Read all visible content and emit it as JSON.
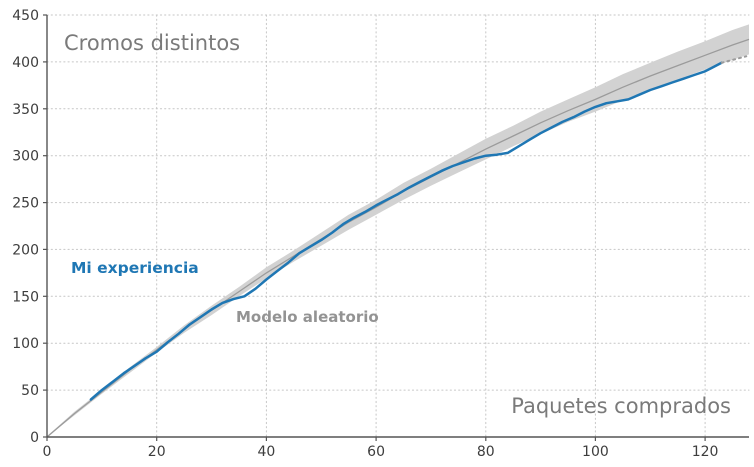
{
  "chart_data": {
    "type": "line",
    "title": "Cromos distintos",
    "xlabel": "Paquetes comprados",
    "ylabel": "Cromos distintos",
    "xlim": [
      0,
      128
    ],
    "ylim": [
      0,
      450
    ],
    "xticks": [
      0,
      20,
      40,
      60,
      80,
      100,
      120
    ],
    "yticks": [
      0,
      50,
      100,
      150,
      200,
      250,
      300,
      350,
      400,
      450
    ],
    "grid": true,
    "legend_position": "inline-annotations",
    "band_color": "#d2d2d2",
    "text_color": "#7a7a7a",
    "series": [
      {
        "name": "Mi experiencia",
        "color": "#1f77b4",
        "x": [
          8,
          10,
          12,
          14,
          16,
          18,
          20,
          22,
          24,
          26,
          28,
          30,
          32,
          34,
          36,
          38,
          40,
          42,
          44,
          46,
          48,
          50,
          52,
          54,
          56,
          58,
          60,
          62,
          64,
          66,
          68,
          70,
          72,
          74,
          76,
          78,
          80,
          82,
          84,
          86,
          88,
          90,
          92,
          94,
          96,
          98,
          100,
          102,
          104,
          106,
          108,
          110,
          112,
          114,
          116,
          118,
          120,
          121,
          122,
          123
        ],
        "y": [
          40,
          50,
          59,
          68,
          76,
          84,
          91,
          101,
          110,
          120,
          128,
          136,
          143,
          147,
          150,
          158,
          168,
          177,
          186,
          196,
          203,
          210,
          218,
          227,
          234,
          240,
          247,
          253,
          259,
          266,
          272,
          278,
          284,
          289,
          293,
          297,
          300,
          301,
          303,
          310,
          317,
          324,
          330,
          336,
          341,
          347,
          352,
          356,
          358,
          360,
          365,
          370,
          374,
          378,
          382,
          386,
          390,
          393,
          396,
          399
        ]
      },
      {
        "name": "Modelo aleatorio",
        "color": "#9b9b9b",
        "x": [
          0,
          5,
          10,
          15,
          20,
          25,
          30,
          35,
          40,
          45,
          50,
          55,
          60,
          65,
          70,
          75,
          80,
          85,
          90,
          95,
          100,
          105,
          110,
          115,
          120,
          125,
          128
        ],
        "y": [
          0,
          25,
          48,
          71,
          93,
          115,
          135,
          155,
          175,
          193,
          211,
          229,
          245,
          262,
          277,
          292,
          307,
          321,
          335,
          348,
          360,
          373,
          385,
          396,
          407,
          418,
          424
        ],
        "band_lower": [
          0,
          23,
          46,
          68,
          90,
          111,
          130,
          150,
          169,
          187,
          204,
          221,
          237,
          253,
          268,
          282,
          296,
          310,
          323,
          336,
          347,
          359,
          371,
          381,
          392,
          402,
          408
        ],
        "band_upper": [
          1,
          27,
          50,
          74,
          96,
          119,
          140,
          160,
          181,
          199,
          218,
          237,
          253,
          271,
          286,
          302,
          318,
          332,
          347,
          360,
          373,
          387,
          399,
          411,
          422,
          434,
          440
        ]
      }
    ],
    "experience_projection": {
      "color": "#9b9b9b",
      "x": [
        123,
        127.5
      ],
      "y": [
        399,
        406
      ]
    }
  }
}
